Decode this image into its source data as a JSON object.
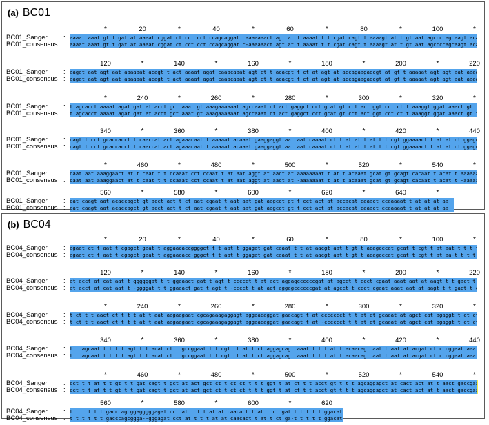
{
  "panels": [
    {
      "letter": "(a)",
      "name": "BC01",
      "label_top": "BC01_Sanger",
      "label_bottom": "BC01_consensus",
      "blocks": [
        {
          "ruler": [
            "*",
            "20",
            "*",
            "40",
            "*",
            "60",
            "*",
            "80",
            "*",
            "100",
            "*"
          ],
          "top": "aaaat aaat gt t gat at aaaat cggat ct cct cct ccagcaggat caaaaaaact agt at t aaaat t t cgat cagt t aaaagt at t gt aat agccccagcaagt acaggt a",
          "bottom": "aaaat aaat gt t gat at aaaat cggat ct cct cct ccagcaggat c-aaaaaact agt at t aaaat t t cgat cagt t aaaagt at t gt aat agccccagcaagt acaggt a"
        },
        {
          "ruler": [
            "120",
            "*",
            "140",
            "*",
            "160",
            "*",
            "180",
            "*",
            "200",
            "*",
            "220"
          ],
          "top": "aagat aat agt aat aaaaaat acagt t act aaaat agat caaacaaat agt ct t acacgt t ct at agt at accagaagaccgt at gt t aaaaat agt agt aat aaaat t aa",
          "bottom": "aagat aat agt aat aaaaaat acagt t act aaaat agat caaacaaat agt ct t acacgt t ct at agt at accagaagaccgt at gt t aaaaat agt agt aat aaaat t aa"
        },
        {
          "ruler": [
            "*",
            "240",
            "*",
            "260",
            "*",
            "280",
            "*",
            "300",
            "*",
            "320",
            "*"
          ],
          "top": "t agcacct aaaat agat gat at acct gct aaat gt aaagaaaaaat agccaaat ct act gaggct cct gcat gt cct act ggt cct ct t aaaggt ggat aaact gt t caac",
          "bottom": "t agcacct aaaat agat gat at acct gct aaat gt aaagaaaaaat agccaaat ct act gaggct cct gcat gt cct act ggt cct ct t aaaggt ggat aaact gt t caac"
        },
        {
          "ruler": [
            "340",
            "*",
            "360",
            "*",
            "380",
            "*",
            "400",
            "*",
            "420",
            "*",
            "440"
          ],
          "top": "cagt t cct gcaccacct t caaccat act agaaacaat t aaaaat acaaat gaaggaggt aat aat caaaat ct t at at t at t t cgt ggaaaact t at at ct ggagct c",
          "bottom": "cagt t cct gcaccacct t caaccat act agaaacaat t aaaaat acaaat gaaggaggt aat aat caaaat ct t at at t at t t cgt ggaaaact t at at ct ggagct c"
        },
        {
          "ruler": [
            "*",
            "460",
            "*",
            "480",
            "*",
            "500",
            "*",
            "520",
            "*",
            "540",
            "*"
          ],
          "top": "caat aat aaaggaact at t caat t t ccaaat cct ccaat t at aat aggt at aact at aaaaaaaat t at t acaaat gcat gt gcagt cacaat t acat t aaaaaaat gat",
          "bottom": "caat aat aaaggaact at t caat t t ccaaat cct ccaat t at aat aggt at aact at -aaaaaaat t at t acaaat gcat gt gcagt cacaat t acat t -aaaaaat gat"
        },
        {
          "ruler": [
            "560",
            "*",
            "580",
            "*",
            "600",
            "*",
            "620",
            "*",
            "640",
            "*"
          ],
          "top": "cat caagt aat acaccagct gt acct aat t ct aat cgaat t aat aat gat aagcct gt t cct act at accacat caaact ccaaaaat t at at at aa",
          "bottom": "cat caagt aat acaccagct gt acct aat t ct aat cgaat t aat aat gat aagcct gt t cct act at accacat caaact ccaaaaat t at at at aa"
        }
      ]
    },
    {
      "letter": "(b)",
      "name": "BC04",
      "label_top": "BC04_Sanger",
      "label_bottom": "BC04_consensus",
      "blocks": [
        {
          "ruler": [
            "*",
            "20",
            "*",
            "40",
            "*",
            "60",
            "*",
            "80",
            "*",
            "100",
            "*"
          ],
          "top": "agaat ct t aat t cgagct gaat t aggaacaccggggct t t aat t ggagat gat caaat t t at aacgt aat t gt t acagcccat gcat t cgt t at aat t t t t t t cat agt a",
          "bottom": "agaat ct t aat t cgagct gaat t aggaacacc-gggct t t aat t ggagat gat caaat t t at aacgt aat t gt t acagcccat gcat t cgt t at aa-t t t t t cat agt a"
        },
        {
          "ruler": [
            "120",
            "*",
            "140",
            "*",
            "160",
            "*",
            "180",
            "*",
            "200",
            "*",
            "220"
          ],
          "top": "at acct at cat aat t ggggggat t t ggaaact gat t agt t ccccct t at act aggagccccccgat at agcct t ccct cgaat aaat aat at aagt t t gact t ct gccccct",
          "bottom": "at acct at cat aat t -ggggat t t ggaaact gat t agt t -cccct t at act aggagccccccgat at agcct t ccct cgaat aaat aat at aagt t t gact t ct g-ccccct",
          "note_unused": ""
        },
        {
          "ruler": [
            "*",
            "240",
            "*",
            "260",
            "*",
            "280",
            "*",
            "300",
            "*",
            "320",
            "*"
          ],
          "top": "t ct t t aact ct t t t at t aat aagaagaat cgcagaaagaggagt aggaacaggat gaacagt t at ccccccct t t at ct gcaaat at agct cat agaggt t ct ct gt agac",
          "bottom": "t ct t t aact ct t t t at t aat aagaagaat cgcagaaagaggagt aggaacaggat gaacagt t at -cccccct t t at ct gcaaat at agct cat agaggt t ct ct gt agac"
        },
        {
          "ruler": [
            "340",
            "*",
            "360",
            "*",
            "380",
            "*",
            "400",
            "*",
            "420",
            "*",
            "440"
          ],
          "top": "t t agcaat t t t t agt t t acat ct t gccggaat t t cgt ct at t ct aggagcagt aaat t t t at t acaacagt aat t aat at acgat ct cccggaat aaat t agaccggat g",
          "bottom": "t t agcaat t t t t agt t t acat ct t gccggaat t t cgt ct at t ct aggagcagt aaat t t t at t acaacagt aat t aat at acgat ct cccggaat aaat t agaccggat g"
        },
        {
          "ruler": [
            "*",
            "460",
            "*",
            "480",
            "*",
            "500",
            "*",
            "520",
            "*",
            "540",
            "*"
          ],
          "top": "cct t t at t t gt t t gat cagt t gct at act gct ct t ct ct t t t ggt t at ct t t acct gt t t t agcaggagct at cact act at t aact gaccgaaat ct t aat acat ct",
          "bottom": "cct t t at t t gt t t gat cagt t gct at act gct ct t ct ct t t t ggt t at ct t t acct gt t t t agcaggagct at cact act at t aact gaccgaaat ct t aat acat c-"
        },
        {
          "ruler": [
            "560",
            "*",
            "580",
            "*",
            "600",
            "*",
            "620"
          ],
          "top": "t t t t t t gacccagcggagggggagat cct at t t t at at caacact t at t ct gat t t t t t ggacat ccagaagt t",
          "bottom": "t t t t t t gacccagcggga--gggagat cct at t t t at at caacact t at t ct ga-t t t t t ggacat ccagaagt t"
        }
      ]
    }
  ]
}
